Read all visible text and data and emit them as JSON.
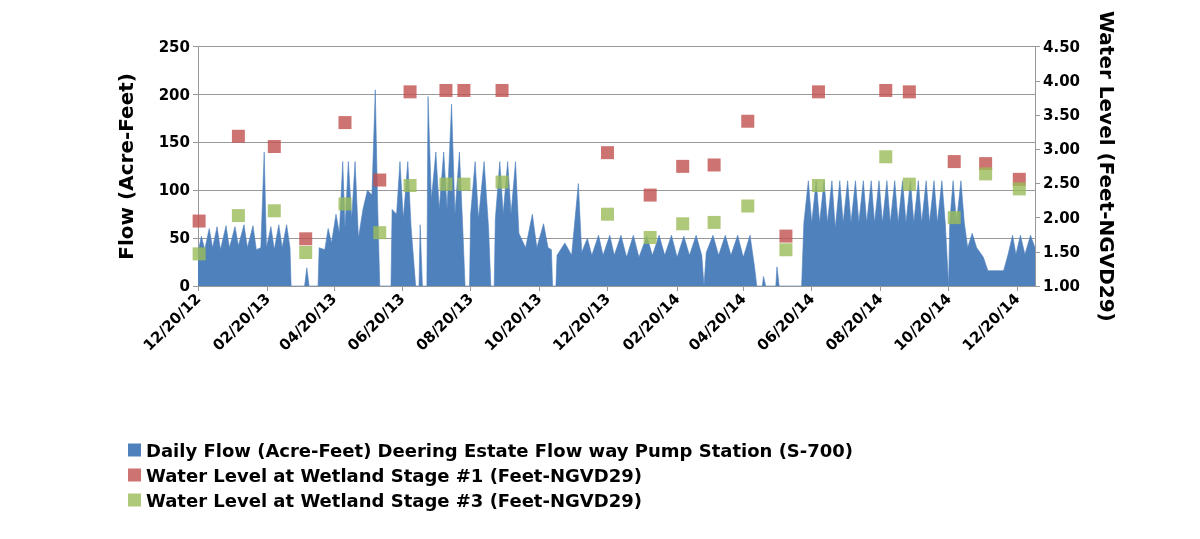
{
  "chart_data": {
    "type": "area",
    "ylabel": "Flow (Acre-Feet)",
    "y2label": "Water Level (Feet-NGVD29)",
    "xlim": [
      "2012-12-20",
      "2015-01-05"
    ],
    "xticks": [
      {
        "value": "2012-12-20",
        "label": "12/20/12"
      },
      {
        "value": "2013-02-20",
        "label": "02/20/13"
      },
      {
        "value": "2013-04-20",
        "label": "04/20/13"
      },
      {
        "value": "2013-06-20",
        "label": "06/20/13"
      },
      {
        "value": "2013-08-20",
        "label": "08/20/13"
      },
      {
        "value": "2013-10-20",
        "label": "10/20/13"
      },
      {
        "value": "2013-12-20",
        "label": "12/20/13"
      },
      {
        "value": "2014-02-20",
        "label": "02/20/14"
      },
      {
        "value": "2014-04-20",
        "label": "04/20/14"
      },
      {
        "value": "2014-06-20",
        "label": "06/20/14"
      },
      {
        "value": "2014-08-20",
        "label": "08/20/14"
      },
      {
        "value": "2014-10-20",
        "label": "10/20/14"
      },
      {
        "value": "2014-12-20",
        "label": "12/20/14"
      }
    ],
    "ylim": [
      0,
      250
    ],
    "yticks": [
      0,
      50,
      100,
      150,
      200,
      250
    ],
    "y2lim": [
      1,
      4.5
    ],
    "y2ticks": [
      {
        "value": 1,
        "label": "1.00"
      },
      {
        "value": 1.5,
        "label": "1.50"
      },
      {
        "value": 2,
        "label": "2.00"
      },
      {
        "value": 2.5,
        "label": "2.50"
      },
      {
        "value": 3,
        "label": "3.00"
      },
      {
        "value": 3.5,
        "label": "3.50"
      },
      {
        "value": 4,
        "label": "4.00"
      },
      {
        "value": 4.5,
        "label": "4.50"
      }
    ],
    "grid": "y",
    "legend": "bottom",
    "series": [
      {
        "name": "Daily Flow (Acre-Feet) Deering Estate Flow way Pump Station (S-700)",
        "marker": "none",
        "color": "#4f81bd",
        "x": [
          "2012-12-20",
          "2012-12-23",
          "2012-12-26",
          "2012-12-30",
          "2013-01-02",
          "2013-01-06",
          "2013-01-09",
          "2013-01-14",
          "2013-01-17",
          "2013-01-22",
          "2013-01-25",
          "2013-01-30",
          "2013-02-02",
          "2013-02-07",
          "2013-02-10",
          "2013-02-14",
          "2013-02-17",
          "2013-02-19",
          "2013-02-23",
          "2013-02-26",
          "2013-03-02",
          "2013-03-05",
          "2013-03-09",
          "2013-03-12",
          "2013-03-13",
          "2013-03-25",
          "2013-03-27",
          "2013-03-29",
          "2013-04-06",
          "2013-04-07",
          "2013-04-12",
          "2013-04-15",
          "2013-04-18",
          "2013-04-22",
          "2013-04-25",
          "2013-04-28",
          "2013-04-30",
          "2013-05-03",
          "2013-05-06",
          "2013-05-09",
          "2013-05-12",
          "2013-05-16",
          "2013-05-20",
          "2013-05-24",
          "2013-05-27",
          "2013-05-29",
          "2013-05-31",
          "2013-06-10",
          "2013-06-11",
          "2013-06-15",
          "2013-06-18",
          "2013-06-21",
          "2013-06-25",
          "2013-06-28",
          "2013-07-02",
          "2013-07-05",
          "2013-07-06",
          "2013-07-08",
          "2013-07-12",
          "2013-07-13",
          "2013-07-16",
          "2013-07-20",
          "2013-07-23",
          "2013-07-27",
          "2013-07-30",
          "2013-08-03",
          "2013-08-06",
          "2013-08-10",
          "2013-08-13",
          "2013-08-15",
          "2013-08-19",
          "2013-08-20",
          "2013-08-24",
          "2013-08-27",
          "2013-09-01",
          "2013-09-05",
          "2013-09-07",
          "2013-09-10",
          "2013-09-11",
          "2013-09-15",
          "2013-09-18",
          "2013-09-22",
          "2013-09-25",
          "2013-09-29",
          "2013-10-02",
          "2013-10-08",
          "2013-10-14",
          "2013-10-18",
          "2013-10-24",
          "2013-10-28",
          "2013-10-31",
          "2013-11-01",
          "2013-11-04",
          "2013-11-05",
          "2013-11-12",
          "2013-11-18",
          "2013-11-24",
          "2013-11-27",
          "2013-12-02",
          "2013-12-06",
          "2013-12-12",
          "2013-12-16",
          "2013-12-22",
          "2013-12-26",
          "2014-01-01",
          "2014-01-06",
          "2014-01-12",
          "2014-01-17",
          "2014-01-24",
          "2014-01-29",
          "2014-02-04",
          "2014-02-09",
          "2014-02-15",
          "2014-02-20",
          "2014-02-26",
          "2014-03-03",
          "2014-03-09",
          "2014-03-14",
          "2014-03-16",
          "2014-03-18",
          "2014-03-24",
          "2014-03-29",
          "2014-04-04",
          "2014-04-09",
          "2014-04-15",
          "2014-04-20",
          "2014-04-26",
          "2014-04-30",
          "2014-05-02",
          "2014-05-07",
          "2014-05-08",
          "2014-05-10",
          "2014-05-19",
          "2014-05-20",
          "2014-05-22",
          "2014-06-11",
          "2014-06-13",
          "2014-06-17",
          "2014-06-20",
          "2014-06-24",
          "2014-06-27",
          "2014-07-01",
          "2014-07-04",
          "2014-07-08",
          "2014-07-11",
          "2014-07-15",
          "2014-07-18",
          "2014-07-22",
          "2014-07-25",
          "2014-07-29",
          "2014-08-01",
          "2014-08-05",
          "2014-08-08",
          "2014-08-12",
          "2014-08-15",
          "2014-08-19",
          "2014-08-22",
          "2014-08-26",
          "2014-08-29",
          "2014-09-02",
          "2014-09-05",
          "2014-09-09",
          "2014-09-12",
          "2014-09-16",
          "2014-09-19",
          "2014-09-23",
          "2014-09-26",
          "2014-09-30",
          "2014-10-03",
          "2014-10-07",
          "2014-10-10",
          "2014-10-14",
          "2014-10-17",
          "2014-10-20",
          "2014-10-21",
          "2014-10-24",
          "2014-10-27",
          "2014-10-31",
          "2014-11-03",
          "2014-11-06",
          "2014-11-10",
          "2014-11-14",
          "2014-11-20",
          "2014-11-24",
          "2014-12-08",
          "2014-12-12",
          "2014-12-16",
          "2014-12-19",
          "2014-12-23",
          "2014-12-27",
          "2015-01-01",
          "2015-01-05"
        ],
        "values": [
          35,
          52,
          38,
          60,
          40,
          62,
          38,
          63,
          40,
          62,
          42,
          64,
          40,
          63,
          38,
          40,
          140,
          40,
          62,
          38,
          64,
          40,
          64,
          40,
          0,
          0,
          19,
          0,
          0,
          40,
          38,
          60,
          45,
          75,
          55,
          130,
          60,
          130,
          70,
          130,
          50,
          80,
          100,
          95,
          205,
          90,
          0,
          0,
          80,
          75,
          130,
          70,
          130,
          60,
          0,
          0,
          64,
          0,
          0,
          198,
          90,
          140,
          80,
          140,
          80,
          190,
          75,
          140,
          60,
          0,
          0,
          75,
          130,
          70,
          130,
          60,
          0,
          0,
          70,
          130,
          75,
          130,
          75,
          130,
          55,
          40,
          75,
          40,
          65,
          40,
          38,
          0,
          0,
          32,
          45,
          32,
          107,
          35,
          50,
          32,
          53,
          32,
          53,
          32,
          53,
          30,
          53,
          30,
          52,
          32,
          53,
          32,
          53,
          30,
          52,
          32,
          53,
          32,
          0,
          35,
          53,
          32,
          53,
          32,
          53,
          30,
          53,
          20,
          0,
          0,
          10,
          0,
          0,
          20,
          0,
          0,
          66,
          110,
          66,
          110,
          66,
          110,
          66,
          110,
          60,
          110,
          66,
          110,
          66,
          110,
          66,
          110,
          66,
          110,
          66,
          110,
          66,
          110,
          66,
          110,
          66,
          110,
          66,
          110,
          66,
          110,
          66,
          110,
          66,
          110,
          66,
          110,
          66,
          0,
          66,
          110,
          66,
          110,
          66,
          40,
          55,
          40,
          30,
          16,
          16,
          33,
          53,
          33,
          53,
          33,
          53,
          40
        ]
      },
      {
        "name": "Water Level at Wetland Stage #1 (Feet-NGVD29)",
        "type": "scatter",
        "marker": "square",
        "axis": "y2",
        "color": "#c0504d",
        "x": [
          "2012-12-21",
          "2013-01-25",
          "2013-02-26",
          "2013-03-26",
          "2013-04-30",
          "2013-05-31",
          "2013-06-27",
          "2013-07-29",
          "2013-08-14",
          "2013-09-17",
          "2013-12-20",
          "2014-01-27",
          "2014-02-25",
          "2014-03-25",
          "2014-04-24",
          "2014-05-28",
          "2014-06-26",
          "2014-08-25",
          "2014-09-15",
          "2014-10-25",
          "2014-11-22",
          "2014-12-22"
        ],
        "values": [
          1.95,
          3.19,
          3.04,
          1.69,
          3.39,
          2.55,
          3.84,
          3.86,
          3.86,
          3.86,
          2.95,
          2.33,
          2.75,
          2.77,
          3.41,
          1.73,
          3.84,
          3.86,
          3.84,
          2.82,
          2.79,
          2.56
        ]
      },
      {
        "name": "Water Level at Wetland Stage #3 (Feet-NGVD29)",
        "type": "scatter",
        "marker": "square",
        "axis": "y2",
        "color": "#9bbb59",
        "x": [
          "2012-12-21",
          "2013-01-25",
          "2013-02-26",
          "2013-03-26",
          "2013-04-30",
          "2013-05-31",
          "2013-06-27",
          "2013-07-29",
          "2013-08-14",
          "2013-09-17",
          "2013-12-20",
          "2014-01-27",
          "2014-02-25",
          "2014-03-25",
          "2014-04-24",
          "2014-05-28",
          "2014-06-26",
          "2014-08-25",
          "2014-09-15",
          "2014-10-25",
          "2014-11-22",
          "2014-12-22"
        ],
        "values": [
          1.47,
          2.03,
          2.1,
          1.49,
          2.2,
          1.78,
          2.47,
          2.49,
          2.49,
          2.52,
          2.05,
          1.71,
          1.91,
          1.93,
          2.17,
          1.53,
          2.47,
          2.89,
          2.49,
          2.0,
          2.64,
          2.42
        ]
      }
    ]
  }
}
